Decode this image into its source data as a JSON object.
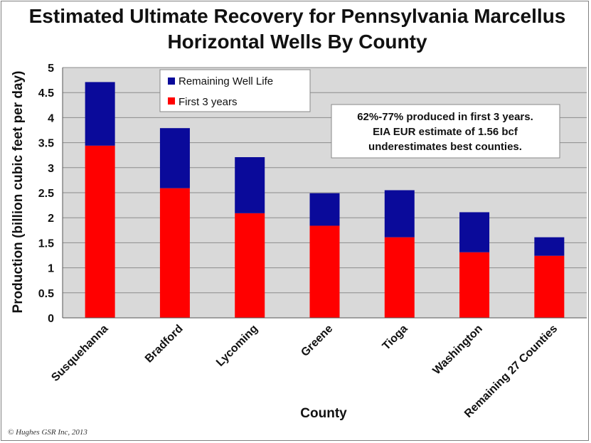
{
  "chart_data": {
    "type": "bar",
    "stacked": true,
    "title_lines": [
      "Estimated Ultimate Recovery for Pennsylvania Marcellus",
      "Horizontal Wells By County"
    ],
    "xlabel": "County",
    "ylabel": "Production (billion cubic feet per day)",
    "ylim": [
      0,
      5
    ],
    "yticks": [
      "0",
      "0.5",
      "1",
      "1.5",
      "2",
      "2.5",
      "3",
      "3.5",
      "4",
      "4.5",
      "5"
    ],
    "grid": true,
    "legend_position": "top-left",
    "categories": [
      "Susquehanna",
      "Bradford",
      "Lycoming",
      "Greene",
      "Tioga",
      "Washington",
      "Remaining 27 Counties"
    ],
    "series": [
      {
        "name": "First 3 years",
        "color": "#ff0000",
        "values": [
          3.44,
          2.59,
          2.09,
          1.84,
          1.61,
          1.31,
          1.24
        ]
      },
      {
        "name": "Remaining Well Life",
        "color": "#0a0a9a",
        "values": [
          1.27,
          1.2,
          1.12,
          0.65,
          0.94,
          0.8,
          0.37
        ]
      }
    ],
    "annotation_lines": [
      "62%-77% produced in first 3 years.",
      "EIA EUR estimate of 1.56 bcf",
      "underestimates best counties."
    ],
    "plot_background": "#d9d9d9",
    "gridline_color": "#8c8c8c"
  },
  "copyright": "© Hughes GSR Inc, 2013"
}
